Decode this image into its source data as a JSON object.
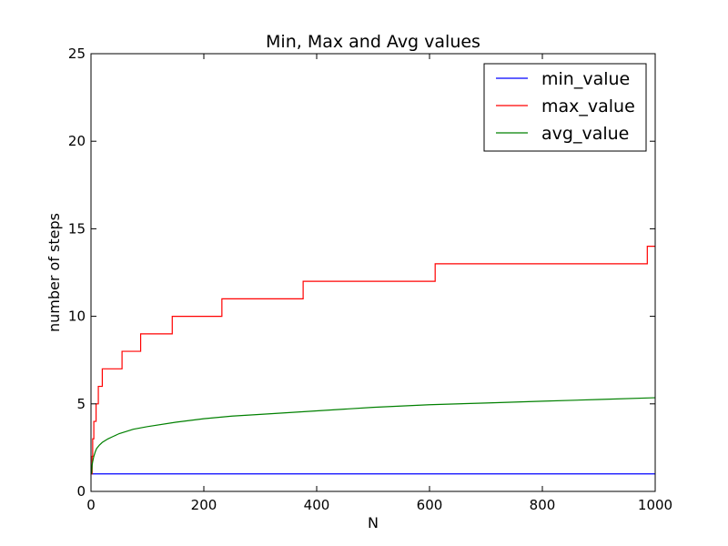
{
  "chart_data": {
    "type": "line",
    "title": "Min, Max and Avg values",
    "xlabel": "N",
    "ylabel": "number of steps",
    "xlim": [
      0,
      1000
    ],
    "ylim": [
      0,
      25
    ],
    "xticks": [
      0,
      200,
      400,
      600,
      800,
      1000
    ],
    "xtick_labels": [
      "0",
      "200",
      "400",
      "600",
      "800",
      "1000"
    ],
    "yticks": [
      0,
      5,
      10,
      15,
      20,
      25
    ],
    "ytick_labels": [
      "0",
      "5",
      "10",
      "15",
      "20",
      "25"
    ],
    "grid": false,
    "legend_position": "top-right",
    "series": [
      {
        "name": "min_value",
        "color": "#0000ff",
        "x": [
          1,
          1000
        ],
        "y": [
          1,
          1
        ]
      },
      {
        "name": "max_value",
        "color": "#ff0000",
        "x": [
          1,
          2,
          2,
          3,
          3,
          5,
          5,
          9,
          9,
          13,
          13,
          20,
          20,
          33,
          33,
          55,
          55,
          88,
          88,
          144,
          144,
          232,
          232,
          376,
          376,
          610,
          610,
          986,
          986,
          1000
        ],
        "y": [
          1,
          1,
          2,
          2,
          3,
          3,
          4,
          4,
          5,
          5,
          6,
          6,
          7,
          7,
          7,
          7,
          8,
          8,
          9,
          9,
          10,
          10,
          11,
          11,
          12,
          12,
          13,
          13,
          14,
          14
        ]
      },
      {
        "name": "avg_value",
        "color": "#008000",
        "x": [
          1,
          2,
          3,
          5,
          8,
          10,
          15,
          20,
          30,
          40,
          50,
          75,
          100,
          150,
          200,
          250,
          300,
          400,
          500,
          600,
          700,
          800,
          900,
          1000
        ],
        "y": [
          1.0,
          1.5,
          1.7,
          2.0,
          2.3,
          2.45,
          2.65,
          2.8,
          3.0,
          3.15,
          3.3,
          3.55,
          3.7,
          3.95,
          4.15,
          4.3,
          4.4,
          4.6,
          4.8,
          4.95,
          5.05,
          5.15,
          5.25,
          5.35
        ]
      }
    ]
  }
}
